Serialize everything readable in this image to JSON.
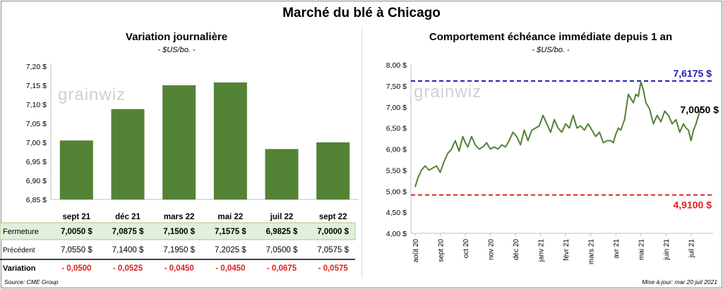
{
  "title": "Marché du blé à Chicago",
  "left_panel": {
    "title": "Variation  journalière",
    "subtitle": "- $US/bo. -"
  },
  "right_panel": {
    "title": "Comportement  échéance immédiate depuis 1 an",
    "subtitle": "- $US/bo. -"
  },
  "watermark": "grainwiz",
  "table": {
    "rows": [
      {
        "label": "Fermeture",
        "values": [
          "7,0050  $",
          "7,0875  $",
          "7,1500  $",
          "7,1575  $",
          "6,9825  $",
          "7,0000  $"
        ]
      },
      {
        "label": "Précédent",
        "values": [
          "7,0550  $",
          "7,1400  $",
          "7,1950  $",
          "7,2025  $",
          "7,0500  $",
          "7,0575  $"
        ]
      },
      {
        "label": "Variation",
        "values": [
          "- 0,0500",
          "- 0,0525",
          "- 0,0450",
          "- 0,0450",
          "- 0,0675",
          "- 0,0575"
        ]
      }
    ]
  },
  "footer": {
    "source": "Source: CME Group",
    "updated": "Mise à jour: mar 20 juil 2021"
  },
  "colors": {
    "bar": "#548235",
    "line": "#548235",
    "high": "#1f1fb4",
    "low": "#e0201b",
    "negative": "#e0201b",
    "row_highlight": "#e2efda"
  },
  "chart_data": [
    {
      "type": "bar",
      "categories": [
        "sept 21",
        "déc 21",
        "mars 22",
        "mai 22",
        "juil 22",
        "sept 22"
      ],
      "values": [
        7.005,
        7.0875,
        7.15,
        7.1575,
        6.9825,
        7.0
      ],
      "ylim": [
        6.85,
        7.2
      ],
      "yticks": [
        "6,85 $",
        "6,90 $",
        "6,95 $",
        "7,00 $",
        "7,05 $",
        "7,10 $",
        "7,15 $",
        "7,20 $"
      ],
      "grid": false
    },
    {
      "type": "line",
      "ylim": [
        4.0,
        8.0
      ],
      "yticks": [
        "4,00 $",
        "4,50 $",
        "5,00 $",
        "5,50 $",
        "6,00 $",
        "6,50 $",
        "7,00 $",
        "7,50 $",
        "8,00 $"
      ],
      "xticks": [
        "août 20",
        "sept 20",
        "oct 20",
        "nov 20",
        "déc 20",
        "janv 21",
        "févr 21",
        "mars 21",
        "avr 21",
        "mai 21",
        "juin 21",
        "juil 21"
      ],
      "x_months": [
        0,
        1,
        2,
        3,
        4,
        5,
        6,
        7,
        8,
        9,
        10,
        11
      ],
      "series": [
        {
          "x": [
            0,
            0.1,
            0.25,
            0.4,
            0.55,
            0.7,
            0.85,
            1.0,
            1.15,
            1.3,
            1.45,
            1.6,
            1.75,
            1.9,
            2.0,
            2.1,
            2.25,
            2.4,
            2.55,
            2.7,
            2.85,
            3.0,
            3.15,
            3.3,
            3.45,
            3.6,
            3.75,
            3.9,
            4.05,
            4.2,
            4.35,
            4.5,
            4.65,
            4.8,
            4.95,
            5.1,
            5.25,
            5.4,
            5.55,
            5.7,
            5.85,
            6.0,
            6.15,
            6.3,
            6.45,
            6.6,
            6.75,
            6.9,
            7.05,
            7.2,
            7.35,
            7.5,
            7.65,
            7.8,
            7.9,
            8.0,
            8.1,
            8.2,
            8.35,
            8.5,
            8.6,
            8.7,
            8.8,
            8.9,
            9.0,
            9.1,
            9.2,
            9.35,
            9.5,
            9.65,
            9.8,
            9.95,
            10.1,
            10.25,
            10.4,
            10.55,
            10.7,
            10.8,
            10.9,
            11.0,
            11.1,
            11.2,
            11.35,
            11.45
          ],
          "y": [
            5.1,
            5.3,
            5.5,
            5.6,
            5.5,
            5.55,
            5.6,
            5.45,
            5.7,
            5.9,
            6.0,
            6.2,
            5.95,
            6.3,
            6.15,
            6.05,
            6.3,
            6.1,
            6.0,
            6.05,
            6.15,
            6.0,
            6.05,
            6.0,
            6.1,
            6.05,
            6.2,
            6.4,
            6.3,
            6.1,
            6.45,
            6.2,
            6.45,
            6.5,
            6.55,
            6.8,
            6.6,
            6.4,
            6.7,
            6.5,
            6.4,
            6.6,
            6.5,
            6.8,
            6.5,
            6.55,
            6.45,
            6.6,
            6.45,
            6.3,
            6.4,
            6.15,
            6.2,
            6.2,
            6.15,
            6.35,
            6.5,
            6.45,
            6.7,
            7.3,
            7.2,
            7.1,
            7.3,
            7.25,
            7.6,
            7.4,
            7.1,
            6.95,
            6.6,
            6.8,
            6.65,
            6.9,
            6.8,
            6.6,
            6.7,
            6.4,
            6.6,
            6.5,
            6.45,
            6.2,
            6.45,
            6.6,
            6.9,
            7.005
          ]
        }
      ],
      "annotations": [
        {
          "label": "7,6175 $",
          "value": 7.6175
        },
        {
          "label": "4,9100 $",
          "value": 4.91
        },
        {
          "label": "7,0050 $",
          "value": 7.005
        }
      ],
      "grid": false
    }
  ]
}
